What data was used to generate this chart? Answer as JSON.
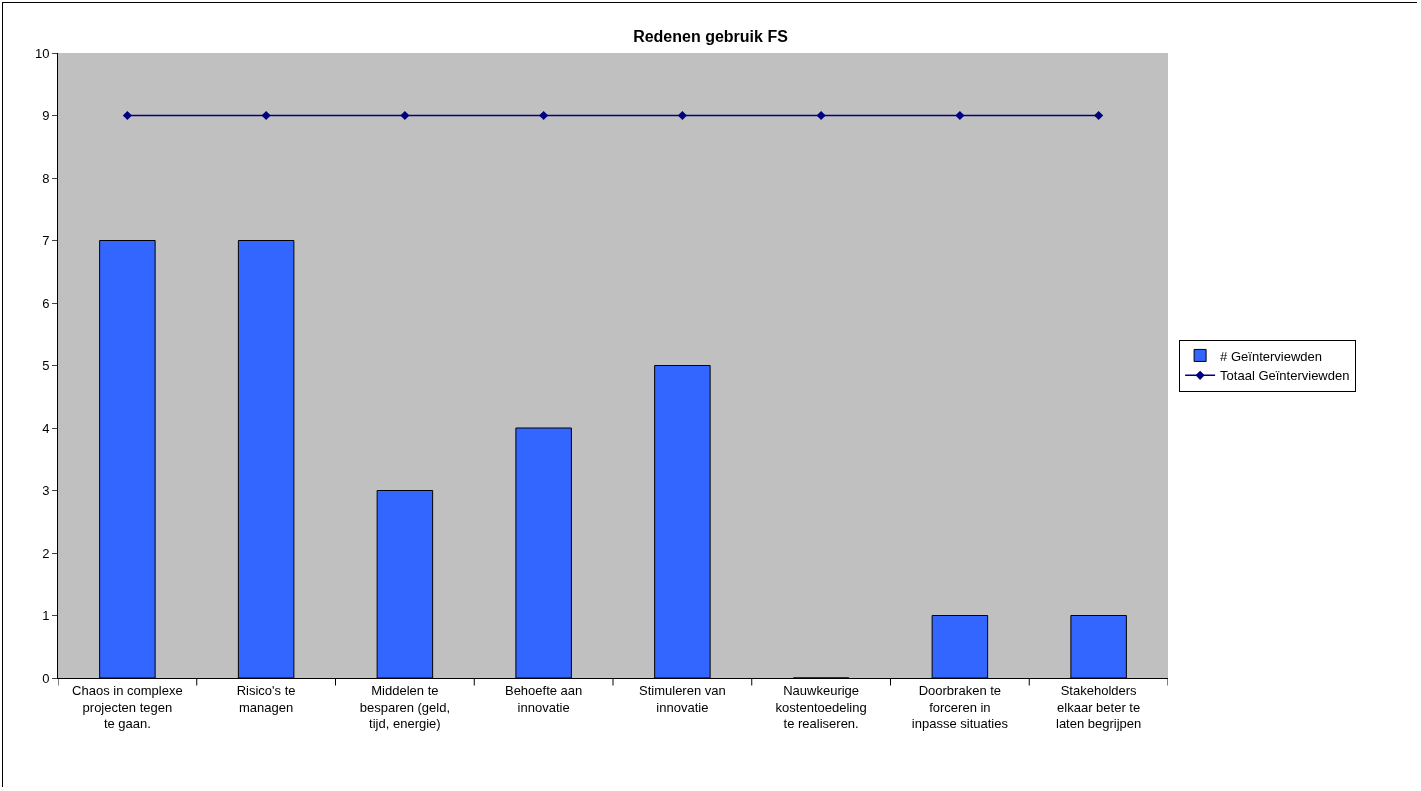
{
  "chart_data": {
    "type": "bar",
    "title": "Redenen gebruik FS",
    "categories": [
      "Chaos in complexe projecten tegen te gaan.",
      "Risico's te managen",
      "Middelen te besparen (geld, tijd, energie)",
      "Behoefte aan innovatie",
      "Stimuleren van innovatie",
      "Nauwkeurige kostentoedeling te realiseren.",
      "Doorbraken te forceren in inpasse situaties",
      "Stakeholders elkaar beter te laten begrijpen"
    ],
    "series": [
      {
        "name": "# Geïnterviewden",
        "color": "#3366ff",
        "values": [
          7,
          7,
          3,
          4,
          5,
          0,
          1,
          1
        ]
      },
      {
        "name": "Totaal Geïnterviewden",
        "type": "line",
        "color": "#000080",
        "marker": "diamond",
        "line_style": "solid",
        "values": [
          9,
          9,
          9,
          9,
          9,
          9,
          9,
          9
        ]
      }
    ],
    "ylim": [
      0,
      10
    ],
    "yticks": [
      0,
      1,
      2,
      3,
      4,
      5,
      6,
      7,
      8,
      9,
      10
    ],
    "grid": false,
    "legend": "right"
  }
}
